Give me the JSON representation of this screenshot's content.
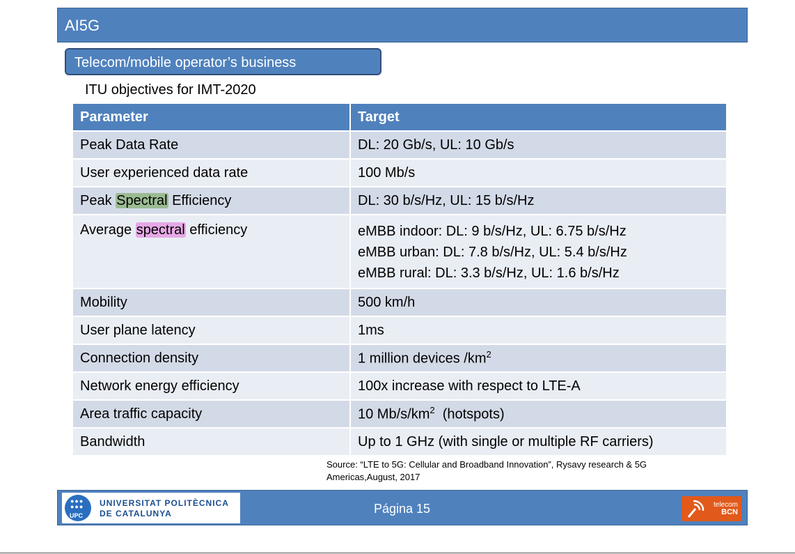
{
  "header": {
    "title": "AI5G"
  },
  "subheader": {
    "title": "Telecom/mobile operator’s business"
  },
  "slide": {
    "heading": "ITU objectives for IMT-2020"
  },
  "table": {
    "headers": [
      "Parameter",
      "Target"
    ],
    "rows": [
      {
        "parameter": "Peak Data Rate",
        "target": "DL: 20 Gb/s, UL: 10 Gb/s"
      },
      {
        "parameter": "User experienced data rate",
        "target": "100 Mb/s"
      },
      {
        "parameter_parts": [
          "Peak ",
          "Spectral",
          " Efficiency"
        ],
        "target": "DL: 30 b/s/Hz, UL: 15 b/s/Hz"
      },
      {
        "parameter_parts": [
          "Average ",
          "spectral",
          " efficiency"
        ],
        "target_lines": [
          "eMBB indoor: DL: 9 b/s/Hz, UL: 6.75 b/s/Hz",
          "eMBB urban: DL: 7.8 b/s/Hz, UL: 5.4 b/s/Hz",
          "eMBB rural: DL: 3.3 b/s/Hz, UL: 1.6 b/s/Hz"
        ]
      },
      {
        "parameter": "Mobility",
        "target": "500 km/h"
      },
      {
        "parameter": "User plane latency",
        "target": "1ms"
      },
      {
        "parameter": "Connection density",
        "target": "1 million devices /km",
        "target_sup": "2"
      },
      {
        "parameter": "Network energy efficiency",
        "target": "100x increase with respect to LTE-A"
      },
      {
        "parameter": "Area traffic capacity",
        "target": "10 Mb/s/km",
        "target_sup": "2",
        "target_suffix": "  (hotspots)"
      },
      {
        "parameter": "Bandwidth",
        "target": "Up to 1 GHz (with single or multiple RF carriers)"
      }
    ]
  },
  "source": {
    "line1": "Source: “LTE to 5G: Cellular and Broadband Innovation”, Rysavy research & 5G",
    "line2": "Americas,August, 2017"
  },
  "footer": {
    "university_line1": "UNIVERSITAT POLITÈCNICA",
    "university_line2": "DE CATALUNYA",
    "upc_abbr": "UPC",
    "page_label": "Página 15",
    "telecom_line1": "telecom",
    "telecom_line2": "BCN"
  },
  "colors": {
    "accent": "#4f81bd",
    "row_odd": "#d3dae7",
    "row_even": "#e9edf4",
    "highlight_green": "#9bbb93",
    "highlight_pink": "#e6a8e6",
    "telecom_orange": "#e1591b"
  }
}
